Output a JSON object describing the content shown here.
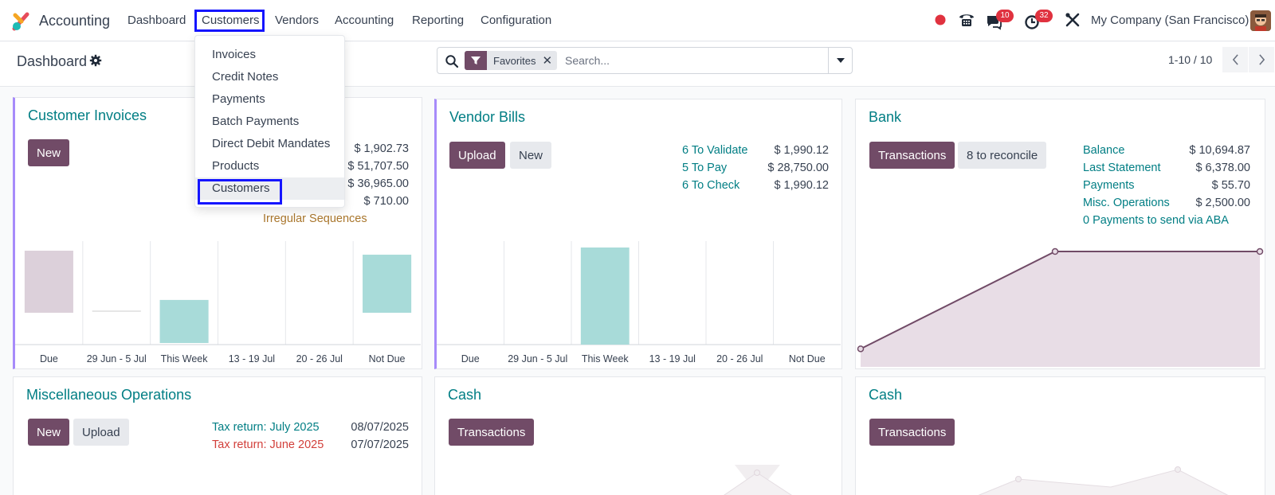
{
  "navbar": {
    "app_name": "Accounting",
    "menus": [
      "Dashboard",
      "Customers",
      "Vendors",
      "Accounting",
      "Reporting",
      "Configuration"
    ],
    "active_menu": "Customers",
    "messages_badge": "10",
    "activities_badge": "32",
    "company": "My Company (San Francisco)"
  },
  "control_panel": {
    "title": "Dashboard",
    "facet_label": "Favorites",
    "search_placeholder": "Search...",
    "pager": "1-10 / 10"
  },
  "customers_menu": {
    "items": [
      "Invoices",
      "Credit Notes",
      "Payments",
      "Batch Payments",
      "Direct Debit Mandates",
      "Products",
      "Customers"
    ],
    "hovered": "Customers"
  },
  "cards": {
    "customer_invoices": {
      "title": "Customer Invoices",
      "new_label": "New",
      "amounts": [
        "$ 1,902.73",
        "$ 51,707.50",
        "$ 36,965.00",
        "$ 710.00"
      ],
      "irregular_label": "Irregular Sequences"
    },
    "vendor_bills": {
      "title": "Vendor Bills",
      "upload_label": "Upload",
      "new_label": "New",
      "rows": [
        {
          "label": "6 To Validate",
          "amount": "$ 1,990.12"
        },
        {
          "label": "5 To Pay",
          "amount": "$ 28,750.00"
        },
        {
          "label": "6 To Check",
          "amount": "$ 1,990.12"
        }
      ]
    },
    "bank": {
      "title": "Bank",
      "transactions_label": "Transactions",
      "reconcile_label": "8 to reconcile",
      "rows": [
        {
          "label": "Balance",
          "amount": "$ 10,694.87"
        },
        {
          "label": "Last Statement",
          "amount": "$ 6,378.00"
        },
        {
          "label": "Payments",
          "amount": "$ 55.70"
        },
        {
          "label": "Misc. Operations",
          "amount": "$ 2,500.00"
        }
      ],
      "aba_link": "0 Payments to send via ABA"
    },
    "misc_operations": {
      "title": "Miscellaneous Operations",
      "new_label": "New",
      "upload_label": "Upload",
      "rows": [
        {
          "label": "Tax return: July 2025",
          "date": "08/07/2025",
          "tone": "teal"
        },
        {
          "label": "Tax return: June 2025",
          "date": "07/07/2025",
          "tone": "red"
        }
      ]
    },
    "cash_1": {
      "title": "Cash",
      "transactions_label": "Transactions"
    },
    "cash_2": {
      "title": "Cash",
      "transactions_label": "Transactions"
    }
  },
  "chart_data": [
    {
      "type": "bar",
      "categories": [
        "Due",
        "29 Jun - 5 Jul",
        "This Week",
        "13 - 19 Jul",
        "20 - 26 Jul",
        "Not Due"
      ],
      "series": [
        {
          "values": [
            1902.73,
            0,
            710.0,
            0,
            0,
            1780.0
          ]
        }
      ],
      "colors": [
        "#dcd0da",
        "#e6e6e6",
        "#a8dbd9",
        "#e6e6e6",
        "#e6e6e6",
        "#a8dbd9"
      ]
    },
    {
      "type": "bar",
      "categories": [
        "Due",
        "29 Jun - 5 Jul",
        "This Week",
        "13 - 19 Jul",
        "20 - 26 Jul",
        "Not Due"
      ],
      "series": [
        {
          "values": [
            0,
            0,
            1990.12,
            0,
            0,
            0
          ]
        }
      ],
      "colors": [
        "#a8dbd9"
      ]
    },
    {
      "type": "area",
      "x": [
        0,
        1,
        2
      ],
      "series": [
        {
          "values": [
            55.7,
            10694.87,
            10694.87
          ]
        }
      ],
      "colors": [
        "#714b67",
        "#e8dde6"
      ]
    }
  ]
}
